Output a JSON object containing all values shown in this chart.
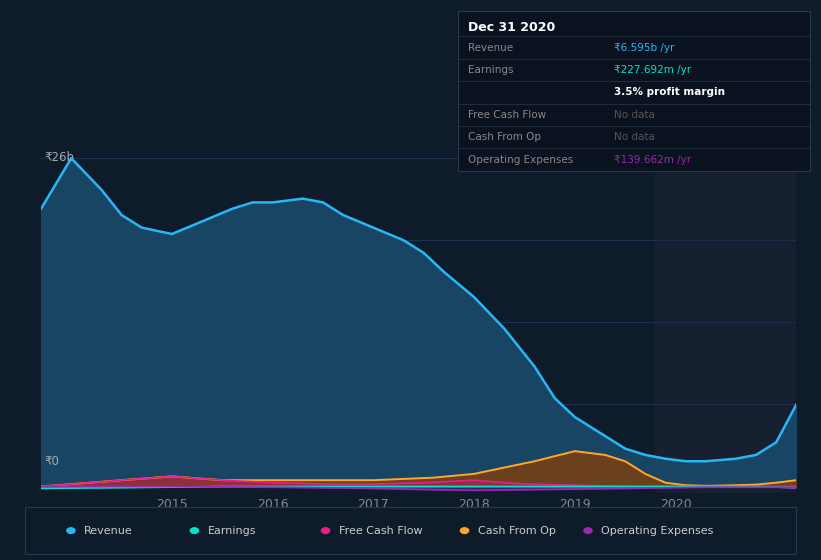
{
  "bg_color": "#0d1b2a",
  "plot_bg_color": "#0d1b2a",
  "future_bg": "#162030",
  "grid_color": "#1e3050",
  "ylabel_text": "₹26b",
  "y0_text": "₹0",
  "x_ticks": [
    2015,
    2016,
    2017,
    2018,
    2019,
    2020
  ],
  "x_range": [
    2013.7,
    2021.2
  ],
  "y_range": [
    -0.5,
    27
  ],
  "future_start": 2019.8,
  "series": {
    "revenue": {
      "color": "#29b6f6",
      "fill_color": "#1a4a6b",
      "label": "Revenue",
      "data_x": [
        2013.7,
        2014.0,
        2014.3,
        2014.5,
        2014.7,
        2015.0,
        2015.3,
        2015.6,
        2015.8,
        2016.0,
        2016.3,
        2016.5,
        2016.7,
        2017.0,
        2017.3,
        2017.5,
        2017.7,
        2018.0,
        2018.3,
        2018.6,
        2018.8,
        2019.0,
        2019.3,
        2019.5,
        2019.7,
        2019.9,
        2020.1,
        2020.3,
        2020.6,
        2020.8,
        2021.0,
        2021.2
      ],
      "data_y": [
        22,
        26,
        23.5,
        21.5,
        20.5,
        20.0,
        21.0,
        22.0,
        22.5,
        22.5,
        22.8,
        22.5,
        21.5,
        20.5,
        19.5,
        18.5,
        17.0,
        15.0,
        12.5,
        9.5,
        7.0,
        5.5,
        4.0,
        3.0,
        2.5,
        2.2,
        2.0,
        2.0,
        2.2,
        2.5,
        3.5,
        6.5
      ]
    },
    "earnings": {
      "color": "#00e5c9",
      "label": "Earnings",
      "data_x": [
        2013.7,
        2014.5,
        2015.0,
        2015.5,
        2016.0,
        2016.5,
        2017.0,
        2017.5,
        2018.0,
        2018.5,
        2019.0,
        2019.5,
        2019.9,
        2020.3,
        2020.8,
        2021.2
      ],
      "data_y": [
        -0.15,
        -0.1,
        -0.05,
        0.0,
        0.0,
        0.0,
        0.0,
        0.0,
        0.0,
        0.0,
        0.0,
        0.0,
        0.0,
        0.0,
        0.0,
        -0.1
      ]
    },
    "free_cash_flow": {
      "color": "#e91e8c",
      "label": "Free Cash Flow",
      "data_x": [
        2013.7,
        2014.5,
        2015.0,
        2015.5,
        2016.0,
        2016.5,
        2017.0,
        2017.5,
        2018.0,
        2018.3,
        2018.5,
        2019.0,
        2019.5,
        2019.9,
        2020.3,
        2020.8,
        2021.2
      ],
      "data_y": [
        0.0,
        0.5,
        0.8,
        0.5,
        0.3,
        0.2,
        0.2,
        0.3,
        0.5,
        0.3,
        0.2,
        0.1,
        0.0,
        0.0,
        0.0,
        0.0,
        0.0
      ]
    },
    "cash_from_op": {
      "color": "#ffa726",
      "label": "Cash From Op",
      "data_x": [
        2013.7,
        2014.5,
        2015.0,
        2015.5,
        2016.0,
        2016.5,
        2017.0,
        2017.3,
        2017.6,
        2018.0,
        2018.3,
        2018.6,
        2019.0,
        2019.3,
        2019.5,
        2019.7,
        2019.9,
        2020.1,
        2020.3,
        2020.6,
        2020.8,
        2021.0,
        2021.2
      ],
      "data_y": [
        0.0,
        0.5,
        0.8,
        0.5,
        0.5,
        0.5,
        0.5,
        0.6,
        0.7,
        1.0,
        1.5,
        2.0,
        2.8,
        2.5,
        2.0,
        1.0,
        0.3,
        0.1,
        0.05,
        0.1,
        0.15,
        0.3,
        0.5
      ]
    },
    "operating_expenses": {
      "color": "#9c27b0",
      "label": "Operating Expenses",
      "data_x": [
        2013.7,
        2014.5,
        2015.0,
        2016.0,
        2016.5,
        2017.0,
        2017.3,
        2017.6,
        2018.0,
        2019.0,
        2019.5,
        2019.9,
        2020.3,
        2020.8,
        2021.0,
        2021.2
      ],
      "data_y": [
        0.0,
        0.0,
        0.0,
        -0.05,
        -0.1,
        -0.15,
        -0.2,
        -0.25,
        -0.3,
        -0.2,
        -0.15,
        -0.1,
        -0.05,
        -0.05,
        -0.05,
        -0.1
      ]
    }
  },
  "info_box": {
    "title": "Dec 31 2020",
    "rows": [
      {
        "label": "Revenue",
        "value": "₹6.595b /yr",
        "value_color": "#29b6f6",
        "bold": false
      },
      {
        "label": "Earnings",
        "value": "₹227.692m /yr",
        "value_color": "#00e5c9",
        "bold": false
      },
      {
        "label": "",
        "value": "3.5% profit margin",
        "value_color": "#ffffff",
        "bold": true
      },
      {
        "label": "Free Cash Flow",
        "value": "No data",
        "value_color": "#555555",
        "bold": false
      },
      {
        "label": "Cash From Op",
        "value": "No data",
        "value_color": "#555555",
        "bold": false
      },
      {
        "label": "Operating Expenses",
        "value": "₹139.662m /yr",
        "value_color": "#9c27b0",
        "bold": false
      }
    ],
    "bg_color": "#0a1220",
    "border_color": "#2a3a4a",
    "text_color": "#888888",
    "title_color": "#ffffff"
  },
  "legend": [
    {
      "label": "Revenue",
      "color": "#29b6f6"
    },
    {
      "label": "Earnings",
      "color": "#00e5c9"
    },
    {
      "label": "Free Cash Flow",
      "color": "#e91e8c"
    },
    {
      "label": "Cash From Op",
      "color": "#ffa726"
    },
    {
      "label": "Operating Expenses",
      "color": "#9c27b0"
    }
  ],
  "grid_y_values": [
    0,
    6.5,
    13,
    19.5,
    26
  ]
}
